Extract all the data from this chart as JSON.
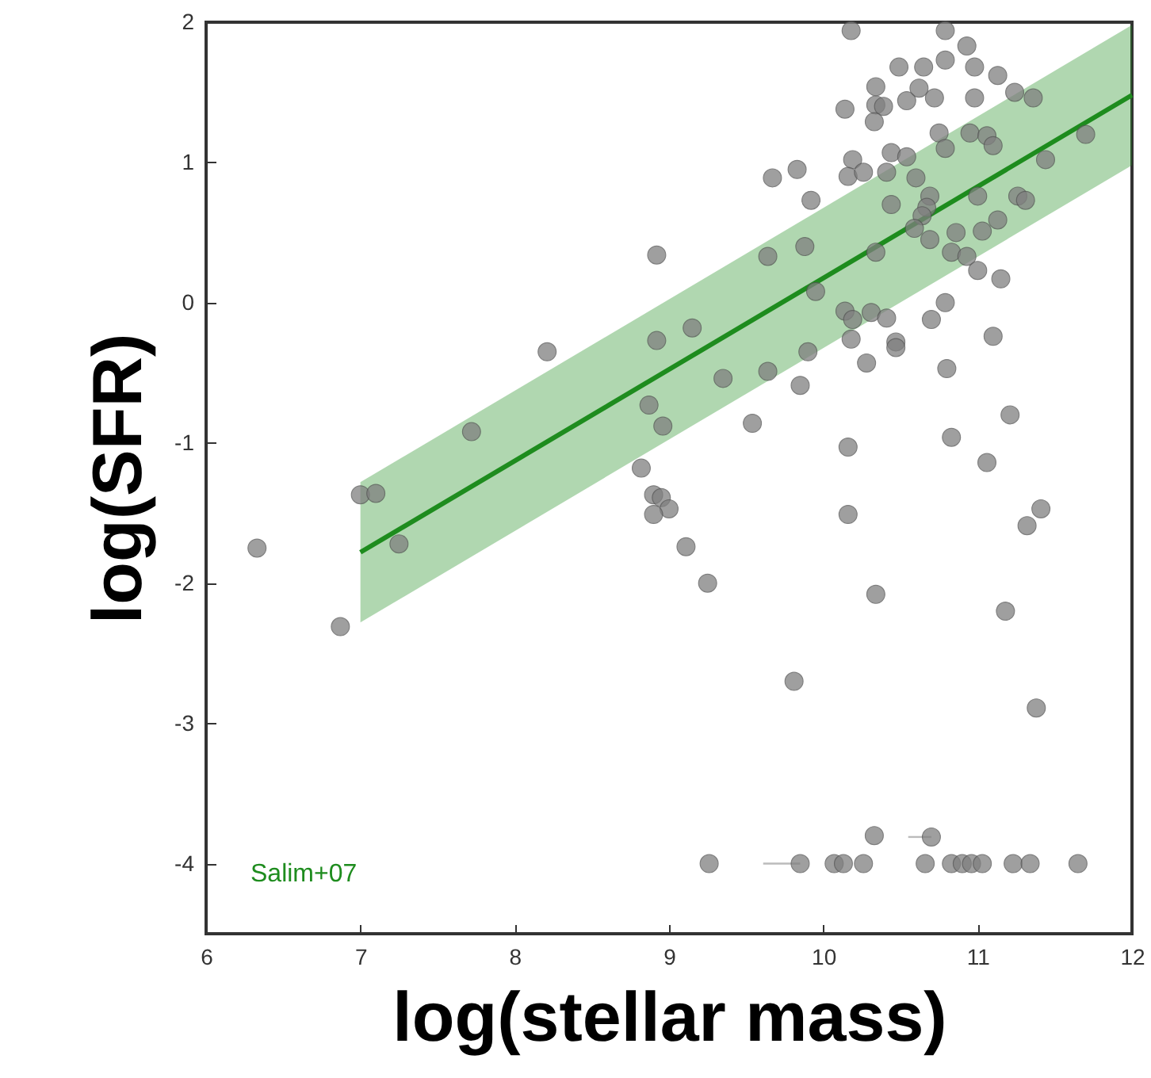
{
  "chart_data": {
    "type": "scatter",
    "xlabel": "log(stellar mass)",
    "ylabel": "log(SFR)",
    "xlim": [
      6,
      12
    ],
    "ylim": [
      -4.5,
      2
    ],
    "xticks": [
      6,
      7,
      8,
      9,
      10,
      11,
      12
    ],
    "yticks": [
      -4,
      -3,
      -2,
      -1,
      0,
      1,
      2
    ],
    "grid": false,
    "series": [
      {
        "marker": "circle",
        "color": "#7f7f7f",
        "x": [
          6.33,
          6.87,
          7.0,
          7.1,
          7.25,
          7.72,
          8.21,
          8.92,
          8.82,
          8.87,
          8.92,
          8.96,
          8.9,
          8.95,
          9.0,
          8.9,
          9.11,
          9.15,
          9.25,
          9.35,
          10.18,
          10.79,
          10.93,
          10.49,
          10.65,
          10.79,
          10.98,
          11.13,
          11.24,
          11.36,
          10.34,
          10.34,
          10.39,
          10.54,
          10.62,
          10.72,
          10.98,
          10.14,
          10.33,
          10.75,
          10.79,
          10.95,
          11.06,
          11.1,
          11.7,
          11.44,
          10.44,
          10.54,
          10.19,
          10.16,
          10.26,
          10.41,
          10.6,
          9.67,
          9.83,
          9.92,
          10.44,
          10.69,
          10.67,
          10.64,
          11.0,
          11.26,
          11.31,
          10.59,
          10.69,
          10.86,
          11.03,
          11.13,
          9.64,
          9.88,
          10.34,
          10.83,
          10.93,
          11.0,
          11.15,
          9.95,
          10.14,
          10.31,
          10.41,
          10.19,
          10.79,
          10.7,
          10.18,
          10.47,
          10.47,
          11.1,
          9.9,
          9.64,
          9.85,
          10.28,
          10.8,
          9.54,
          10.16,
          10.83,
          11.21,
          11.06,
          10.16,
          10.34,
          9.81,
          11.18,
          11.32,
          11.41,
          11.38,
          10.33,
          10.7,
          9.26,
          9.85,
          10.07,
          10.13,
          10.26,
          10.66,
          10.83,
          10.9,
          10.96,
          11.03,
          11.23,
          11.34,
          11.65
        ],
        "values": [
          -1.75,
          -2.31,
          -1.37,
          -1.36,
          -1.72,
          -0.92,
          -0.35,
          0.34,
          -1.18,
          -0.73,
          -0.27,
          -0.88,
          -1.37,
          -1.39,
          -1.47,
          -1.51,
          -1.74,
          -0.18,
          -2.0,
          -0.54,
          1.94,
          1.94,
          1.83,
          1.68,
          1.68,
          1.73,
          1.68,
          1.62,
          1.5,
          1.46,
          1.54,
          1.41,
          1.4,
          1.44,
          1.53,
          1.46,
          1.46,
          1.38,
          1.29,
          1.21,
          1.1,
          1.21,
          1.19,
          1.12,
          1.2,
          1.02,
          1.07,
          1.04,
          1.02,
          0.9,
          0.93,
          0.93,
          0.89,
          0.89,
          0.95,
          0.73,
          0.7,
          0.76,
          0.68,
          0.62,
          0.76,
          0.76,
          0.73,
          0.53,
          0.45,
          0.5,
          0.51,
          0.59,
          0.33,
          0.4,
          0.36,
          0.36,
          0.33,
          0.23,
          0.17,
          0.08,
          -0.06,
          -0.07,
          -0.11,
          -0.12,
          0.0,
          -0.12,
          -0.26,
          -0.28,
          -0.32,
          -0.24,
          -0.35,
          -0.49,
          -0.59,
          -0.43,
          -0.47,
          -0.86,
          -1.03,
          -0.96,
          -0.8,
          -1.14,
          -1.51,
          -2.08,
          -2.7,
          -2.2,
          -1.59,
          -1.47,
          -2.89,
          -3.8,
          -3.81,
          -4,
          -4,
          -4,
          -4,
          -4,
          -4,
          -4,
          -4,
          -4,
          -4,
          -4,
          -4,
          -4
        ],
        "xerrors": [
          null,
          null,
          null,
          null,
          null,
          null,
          null,
          null,
          null,
          null,
          null,
          null,
          null,
          null,
          null,
          null,
          null,
          null,
          null,
          null,
          null,
          null,
          null,
          null,
          null,
          null,
          null,
          null,
          null,
          null,
          null,
          null,
          null,
          null,
          null,
          null,
          null,
          null,
          null,
          null,
          null,
          null,
          null,
          null,
          null,
          null,
          null,
          null,
          null,
          null,
          null,
          null,
          null,
          null,
          null,
          null,
          null,
          null,
          null,
          null,
          null,
          null,
          null,
          null,
          null,
          null,
          null,
          null,
          null,
          null,
          null,
          null,
          null,
          null,
          null,
          null,
          null,
          null,
          null,
          null,
          null,
          null,
          null,
          null,
          null,
          null,
          null,
          null,
          null,
          null,
          null,
          null,
          null,
          null,
          null,
          null,
          null,
          null,
          null,
          null,
          null,
          null,
          null,
          null,
          [
            10.55,
            10.7
          ],
          null,
          [
            9.61,
            9.85
          ],
          null,
          null,
          null,
          null,
          null,
          null,
          null,
          null,
          null,
          null,
          null
        ]
      },
      {
        "type": "line",
        "name": "Salim+07",
        "color": "#1e8c1e",
        "x": [
          7,
          12
        ],
        "values": [
          -1.78,
          1.48
        ],
        "lower": [
          -2.28,
          0.98
        ],
        "upper": [
          -1.28,
          1.98
        ]
      }
    ]
  }
}
